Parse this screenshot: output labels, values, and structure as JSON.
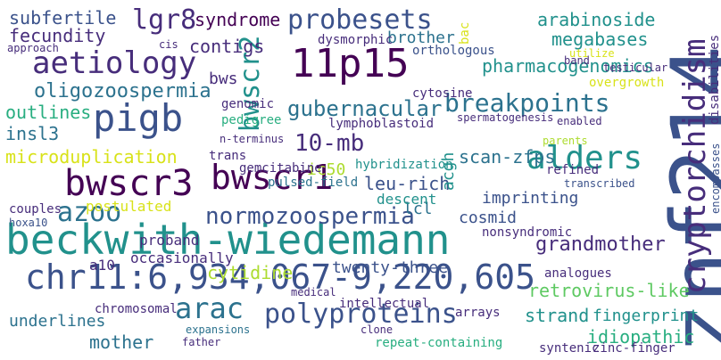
{
  "words": {
    "beckwith": "beckwith-wiedemann",
    "znf214": "znf214",
    "chr11": "chr11:6,934,067-9,220,605",
    "bwscr3": "bwscr3",
    "bwscr1": "bwscr1",
    "p11p15": "11p15",
    "aetiology": "aetiology",
    "pigb": "pigb",
    "probesets": "probesets",
    "alders": "alders",
    "normozoo": "normozoospermia",
    "polyproteins": "polyproteins",
    "arac": "arac",
    "azoo": "azoo",
    "crypto": "cryptorchidism",
    "bwscr2": "bwscr2",
    "lgr8": "lgr8",
    "breakpoints": "breakpoints",
    "gubernacular": "gubernacular",
    "tenmb": "10-mb",
    "grandmother": "grandmother",
    "pharmaco": "pharmacogenomics",
    "oligozoo": "oligozoospermia",
    "subfertile": "subfertile",
    "fecundity": "fecundity",
    "syndrome": "syndrome",
    "contigs": "contigs",
    "arabinoside": "arabinoside",
    "megabases": "megabases",
    "microdup": "microduplication",
    "outlines": "outlines",
    "insl3": "insl3",
    "retro": "retrovirus-like",
    "strand": "strand",
    "idiopathic": "idiopathic",
    "cytidine": "cytidine",
    "mother": "mother",
    "underlines": "underlines",
    "twentythree": "twenty-three",
    "leurich": "leu-rich",
    "cosmid": "cosmid",
    "imprinting": "imprinting",
    "fingerprint": "fingerprint",
    "scanzfps": "scan-zfps",
    "lcl": "lcl",
    "acgh": "acgh",
    "brother": "brother",
    "ic50": "ic50",
    "bws": "bws",
    "bac": "bac",
    "dysmorphic": "dysmorphic",
    "orthologous": "orthologous",
    "cytosine": "cytosine",
    "lympho": "lymphoblastoid",
    "gemcitabine": "gemcitabine",
    "pulsed": "pulsed-field",
    "descent": "descent",
    "trans": "trans",
    "nterminus": "n-terminus",
    "pedigree": "pedigree",
    "genomic": "genomic",
    "hybrid": "hybridization",
    "nonsynd": "nonsyndromic",
    "analogues": "analogues",
    "refined": "refined",
    "transcribed": "transcribed",
    "parents": "parents",
    "enabled": "enabled",
    "spermato": "spermatogenesis",
    "overgrowth": "overgrowth",
    "utilize": "utilize",
    "testicular": "testicular",
    "band": "band",
    "occasionally": "occasionally",
    "a10": "a10",
    "proband": "proband",
    "postulated": "postulated",
    "couples": "couples",
    "hoxa10": "hoxa10",
    "chromosomal": "chromosomal",
    "intellectual": "intellectual",
    "medical": "medical",
    "expansions": "expansions",
    "father": "father",
    "repeat": "repeat-containing",
    "clone": "clone",
    "arrays": "arrays",
    "synthetic": "syntenic",
    "zincfinger": "zinc-finger",
    "disabilities": "disabilities",
    "encompasses": "encompasses",
    "cis": "cis",
    "approach": "approach"
  }
}
